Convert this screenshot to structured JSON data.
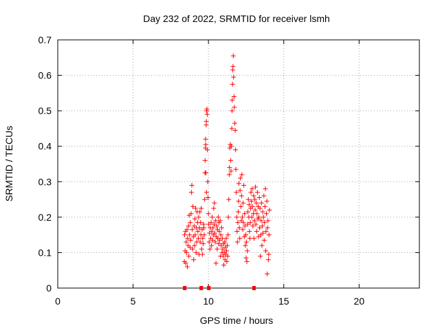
{
  "chart_data": {
    "type": "scatter",
    "title": "Day 232 of 2022, SRMTID for receiver lsmh",
    "xlabel": "GPS time / hours",
    "ylabel": "SRMTID / TECUs",
    "xlim": [
      0,
      24
    ],
    "ylim": [
      0,
      0.7
    ],
    "x_ticks": [
      0,
      5,
      10,
      15,
      20
    ],
    "x_tick_labels": [
      "0",
      "5",
      "10",
      "15",
      "20"
    ],
    "y_ticks": [
      0,
      0.1,
      0.2,
      0.3,
      0.4,
      0.5,
      0.6,
      0.7
    ],
    "y_tick_labels": [
      "0",
      "0.1",
      "0.2",
      "0.3",
      "0.4",
      "0.5",
      "0.6",
      "0.7"
    ],
    "grid": true,
    "series": [
      {
        "name": "SRMTID",
        "color": "#ff0000",
        "marker": "plus",
        "points": [
          [
            8.4,
            0.075
          ],
          [
            8.42,
            0.15
          ],
          [
            8.45,
            0.105
          ],
          [
            8.48,
            0.16
          ],
          [
            8.5,
            0.07
          ],
          [
            8.52,
            0.13
          ],
          [
            8.55,
            0.1
          ],
          [
            8.58,
            0.165
          ],
          [
            8.6,
            0.06
          ],
          [
            8.62,
            0.14
          ],
          [
            8.65,
            0.12
          ],
          [
            8.68,
            0.175
          ],
          [
            8.7,
            0.09
          ],
          [
            8.72,
            0.205
          ],
          [
            8.75,
            0.15
          ],
          [
            8.78,
            0.115
          ],
          [
            8.8,
            0.185
          ],
          [
            8.82,
            0.135
          ],
          [
            8.85,
            0.21
          ],
          [
            8.87,
            0.27
          ],
          [
            8.9,
            0.29
          ],
          [
            8.92,
            0.165
          ],
          [
            8.95,
            0.11
          ],
          [
            8.97,
            0.23
          ],
          [
            9.0,
            0.145
          ],
          [
            9.02,
            0.08
          ],
          [
            9.05,
            0.175
          ],
          [
            9.08,
            0.12
          ],
          [
            9.1,
            0.195
          ],
          [
            9.12,
            0.15
          ],
          [
            9.15,
            0.225
          ],
          [
            9.18,
            0.1
          ],
          [
            9.2,
            0.17
          ],
          [
            9.22,
            0.13
          ],
          [
            9.25,
            0.215
          ],
          [
            9.28,
            0.185
          ],
          [
            9.3,
            0.16
          ],
          [
            9.33,
            0.14
          ],
          [
            9.35,
            0.2
          ],
          [
            9.38,
            0.095
          ],
          [
            9.4,
            0.17
          ],
          [
            9.43,
            0.215
          ],
          [
            9.45,
            0.13
          ],
          [
            9.48,
            0.185
          ],
          [
            9.5,
            0.15
          ],
          [
            9.52,
            0.225
          ],
          [
            9.55,
            0.11
          ],
          [
            9.58,
            0.165
          ],
          [
            9.6,
            0.095
          ],
          [
            9.62,
            0.14
          ],
          [
            9.65,
            0.125
          ],
          [
            9.68,
            0.18
          ],
          [
            9.7,
            0.17
          ],
          [
            9.72,
            0.15
          ],
          [
            9.75,
            0.25
          ],
          [
            9.77,
            0.325
          ],
          [
            9.78,
            0.36
          ],
          [
            9.8,
            0.395
          ],
          [
            9.81,
            0.42
          ],
          [
            9.82,
            0.405
          ],
          [
            9.83,
            0.325
          ],
          [
            9.85,
            0.46
          ],
          [
            9.86,
            0.47
          ],
          [
            9.87,
            0.27
          ],
          [
            9.88,
            0.5
          ],
          [
            9.9,
            0.505
          ],
          [
            9.92,
            0.49
          ],
          [
            9.93,
            0.39
          ],
          [
            9.95,
            0.3
          ],
          [
            9.97,
            0.255
          ],
          [
            10.0,
            0.21
          ],
          [
            10.02,
            0.18
          ],
          [
            10.05,
            0.13
          ],
          [
            10.07,
            0.155
          ],
          [
            10.1,
            0.11
          ],
          [
            10.12,
            0.17
          ],
          [
            10.15,
            0.14
          ],
          [
            10.18,
            0.185
          ],
          [
            10.2,
            0.12
          ],
          [
            10.22,
            0.16
          ],
          [
            10.25,
            0.2
          ],
          [
            10.28,
            0.135
          ],
          [
            10.3,
            0.17
          ],
          [
            10.32,
            0.15
          ],
          [
            10.35,
            0.225
          ],
          [
            10.38,
            0.18
          ],
          [
            10.4,
            0.24
          ],
          [
            10.42,
            0.155
          ],
          [
            10.45,
            0.13
          ],
          [
            10.48,
            0.19
          ],
          [
            10.5,
            0.07
          ],
          [
            10.52,
            0.145
          ],
          [
            10.55,
            0.175
          ],
          [
            10.58,
            0.11
          ],
          [
            10.6,
            0.165
          ],
          [
            10.62,
            0.14
          ],
          [
            10.65,
            0.2
          ],
          [
            10.68,
            0.125
          ],
          [
            10.7,
            0.185
          ],
          [
            10.72,
            0.16
          ],
          [
            10.75,
            0.135
          ],
          [
            10.78,
            0.19
          ],
          [
            10.8,
            0.09
          ],
          [
            10.82,
            0.15
          ],
          [
            10.85,
            0.12
          ],
          [
            10.88,
            0.17
          ],
          [
            10.9,
            0.1
          ],
          [
            10.92,
            0.14
          ],
          [
            10.95,
            0.11
          ],
          [
            10.98,
            0.09
          ],
          [
            11.0,
            0.125
          ],
          [
            11.02,
            0.065
          ],
          [
            11.05,
            0.1
          ],
          [
            11.08,
            0.13
          ],
          [
            11.1,
            0.08
          ],
          [
            11.12,
            0.115
          ],
          [
            11.15,
            0.095
          ],
          [
            11.18,
            0.14
          ],
          [
            11.2,
            0.105
          ],
          [
            11.22,
            0.075
          ],
          [
            11.25,
            0.12
          ],
          [
            11.28,
            0.09
          ],
          [
            11.3,
            0.15
          ],
          [
            11.32,
            0.2
          ],
          [
            11.35,
            0.25
          ],
          [
            11.38,
            0.32
          ],
          [
            11.4,
            0.34
          ],
          [
            11.42,
            0.395
          ],
          [
            11.45,
            0.405
          ],
          [
            11.48,
            0.36
          ],
          [
            11.5,
            0.33
          ],
          [
            11.52,
            0.4
          ],
          [
            11.55,
            0.45
          ],
          [
            11.57,
            0.5
          ],
          [
            11.58,
            0.53
          ],
          [
            11.6,
            0.575
          ],
          [
            11.62,
            0.615
          ],
          [
            11.63,
            0.625
          ],
          [
            11.65,
            0.655
          ],
          [
            11.67,
            0.595
          ],
          [
            11.7,
            0.54
          ],
          [
            11.72,
            0.51
          ],
          [
            11.75,
            0.465
          ],
          [
            11.78,
            0.445
          ],
          [
            11.8,
            0.39
          ],
          [
            11.82,
            0.335
          ],
          [
            11.85,
            0.27
          ],
          [
            11.88,
            0.2
          ],
          [
            11.9,
            0.16
          ],
          [
            11.92,
            0.13
          ],
          [
            11.95,
            0.185
          ],
          [
            11.98,
            0.215
          ],
          [
            12.0,
            0.245
          ],
          [
            12.02,
            0.295
          ],
          [
            12.05,
            0.17
          ],
          [
            12.08,
            0.14
          ],
          [
            12.1,
            0.275
          ],
          [
            12.12,
            0.31
          ],
          [
            12.15,
            0.23
          ],
          [
            12.18,
            0.19
          ],
          [
            12.2,
            0.26
          ],
          [
            12.22,
            0.32
          ],
          [
            12.25,
            0.2
          ],
          [
            12.28,
            0.165
          ],
          [
            12.3,
            0.24
          ],
          [
            12.32,
            0.185
          ],
          [
            12.35,
            0.29
          ],
          [
            12.38,
            0.145
          ],
          [
            12.4,
            0.21
          ],
          [
            12.42,
            0.175
          ],
          [
            12.45,
            0.12
          ],
          [
            12.48,
            0.15
          ],
          [
            12.5,
            0.085
          ],
          [
            12.52,
            0.13
          ],
          [
            12.55,
            0.075
          ],
          [
            12.58,
            0.105
          ],
          [
            12.6,
            0.18
          ],
          [
            12.62,
            0.215
          ],
          [
            12.65,
            0.25
          ],
          [
            12.68,
            0.2
          ],
          [
            12.7,
            0.235
          ],
          [
            12.72,
            0.16
          ],
          [
            12.75,
            0.14
          ],
          [
            12.78,
            0.185
          ],
          [
            12.8,
            0.225
          ],
          [
            12.82,
            0.27
          ],
          [
            12.85,
            0.245
          ],
          [
            12.88,
            0.2
          ],
          [
            12.9,
            0.28
          ],
          [
            12.92,
            0.23
          ],
          [
            12.95,
            0.175
          ],
          [
            12.98,
            0.21
          ],
          [
            13.0,
            0.26
          ],
          [
            13.02,
            0.14
          ],
          [
            13.05,
            0.19
          ],
          [
            13.08,
            0.25
          ],
          [
            13.1,
            0.22
          ],
          [
            13.12,
            0.285
          ],
          [
            13.15,
            0.18
          ],
          [
            13.18,
            0.24
          ],
          [
            13.2,
            0.16
          ],
          [
            13.22,
            0.21
          ],
          [
            13.25,
            0.27
          ],
          [
            13.28,
            0.195
          ],
          [
            13.3,
            0.23
          ],
          [
            13.32,
            0.145
          ],
          [
            13.35,
            0.2
          ],
          [
            13.38,
            0.255
          ],
          [
            13.4,
            0.17
          ],
          [
            13.42,
            0.225
          ],
          [
            13.45,
            0.09
          ],
          [
            13.48,
            0.15
          ],
          [
            13.5,
            0.19
          ],
          [
            13.52,
            0.24
          ],
          [
            13.55,
            0.12
          ],
          [
            13.58,
            0.175
          ],
          [
            13.6,
            0.215
          ],
          [
            13.62,
            0.155
          ],
          [
            13.65,
            0.2
          ],
          [
            13.68,
            0.26
          ],
          [
            13.7,
            0.135
          ],
          [
            13.72,
            0.185
          ],
          [
            13.75,
            0.23
          ],
          [
            13.78,
            0.28
          ],
          [
            13.8,
            0.105
          ],
          [
            13.82,
            0.16
          ],
          [
            13.85,
            0.21
          ],
          [
            13.88,
            0.245
          ],
          [
            13.9,
            0.04
          ],
          [
            13.92,
            0.17
          ],
          [
            13.95,
            0.19
          ],
          [
            13.98,
            0.08
          ],
          [
            14.0,
            0.095
          ],
          [
            14.02,
            0.15
          ],
          [
            14.05,
            0.22
          ]
        ]
      }
    ],
    "zero_markers_x": [
      8.4,
      8.45,
      9.5,
      9.55,
      10.0,
      10.05,
      13.0,
      13.05
    ]
  }
}
